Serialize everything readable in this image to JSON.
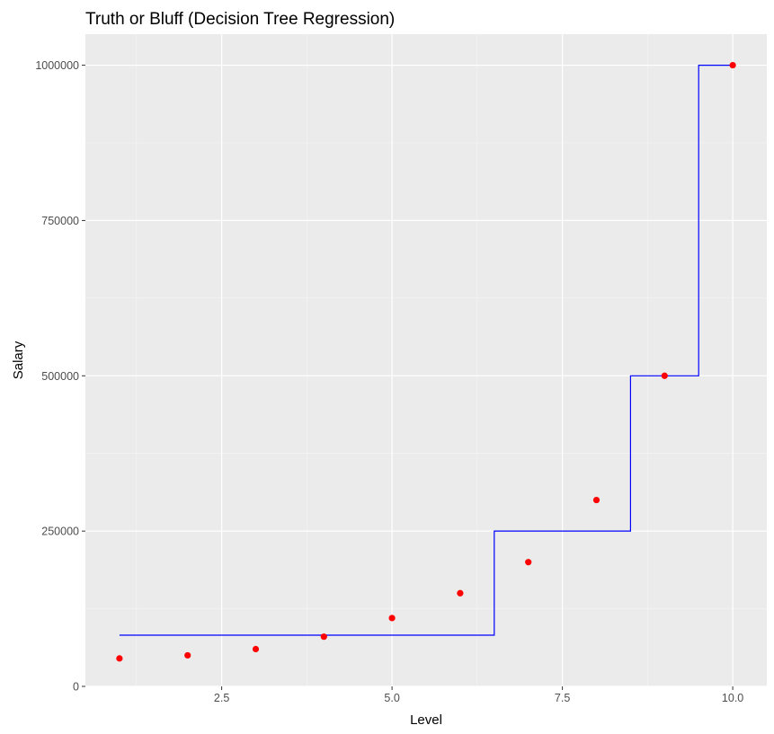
{
  "chart_data": {
    "type": "scatter",
    "title": "Truth or Bluff (Decision Tree Regression)",
    "xlabel": "Level",
    "ylabel": "Salary",
    "xlim": [
      0.5,
      10.5
    ],
    "ylim": [
      0,
      1050000
    ],
    "x_ticks": [
      2.5,
      5.0,
      7.5,
      10.0
    ],
    "x_tick_labels": [
      "2.5",
      "5.0",
      "7.5",
      "10.0"
    ],
    "y_ticks": [
      0,
      250000,
      500000,
      750000,
      1000000
    ],
    "y_tick_labels": [
      "0",
      "250000",
      "500000",
      "750000",
      "1000000"
    ],
    "grid": true,
    "panel_background": "#ebebeb",
    "series": [
      {
        "type": "scatter",
        "color": "#ff0000",
        "x": [
          1,
          2,
          3,
          4,
          5,
          6,
          7,
          8,
          9,
          10
        ],
        "y": [
          45000,
          50000,
          60000,
          80000,
          110000,
          150000,
          200000,
          300000,
          500000,
          1000000
        ]
      },
      {
        "type": "step",
        "color": "#0000ff",
        "x": [
          1,
          6.5,
          6.5,
          8.5,
          8.5,
          9.5,
          9.5,
          10
        ],
        "y": [
          82500,
          82500,
          250000,
          250000,
          500000,
          500000,
          1000000,
          1000000
        ]
      }
    ]
  }
}
